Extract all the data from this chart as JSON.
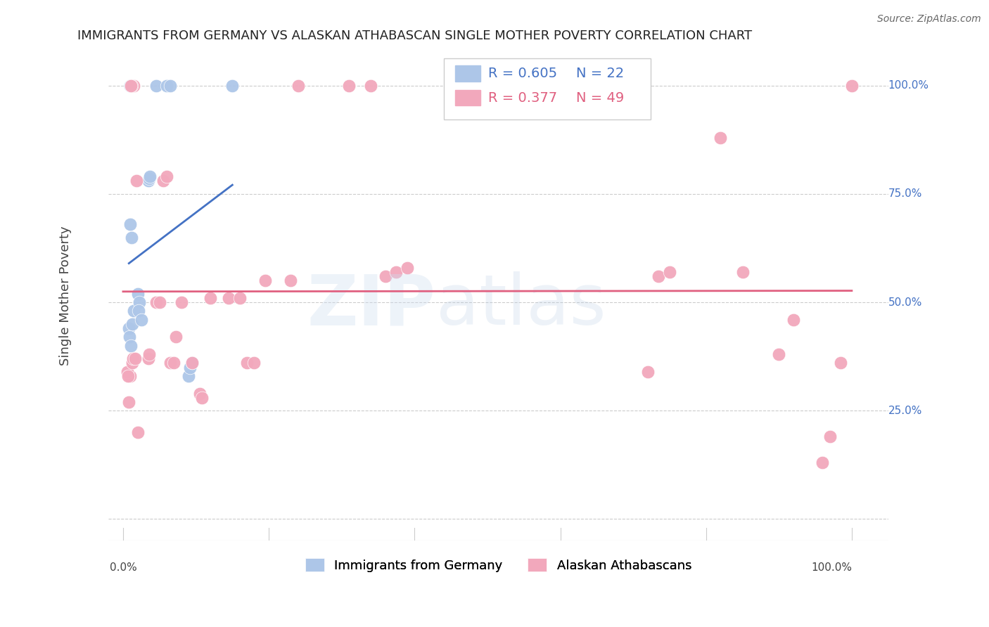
{
  "title": "IMMIGRANTS FROM GERMANY VS ALASKAN ATHABASCAN SINGLE MOTHER POVERTY CORRELATION CHART",
  "source": "Source: ZipAtlas.com",
  "ylabel": "Single Mother Poverty",
  "blue_r": 0.605,
  "blue_n": 22,
  "pink_r": 0.377,
  "pink_n": 49,
  "blue_color": "#adc6e8",
  "pink_color": "#f2a8bc",
  "blue_line_color": "#4472c4",
  "pink_line_color": "#e06080",
  "blue_points_x": [
    1.0,
    4.5,
    6.0,
    6.5,
    1.0,
    1.2,
    0.8,
    0.9,
    1.1,
    1.3,
    1.5,
    2.0,
    2.2,
    2.1,
    2.5,
    3.5,
    3.6,
    3.7,
    9.0,
    9.2,
    9.5,
    15.0
  ],
  "blue_points_y": [
    100.0,
    100.0,
    100.0,
    100.0,
    68.0,
    65.0,
    44.0,
    42.0,
    40.0,
    45.0,
    48.0,
    52.0,
    50.0,
    48.0,
    46.0,
    78.0,
    78.5,
    79.0,
    33.0,
    35.0,
    36.0,
    100.0
  ],
  "pink_points_x": [
    1.0,
    0.8,
    2.0,
    1.5,
    1.2,
    1.1,
    0.6,
    0.7,
    1.3,
    1.4,
    1.6,
    1.8,
    3.5,
    3.6,
    4.5,
    5.0,
    5.5,
    6.0,
    6.5,
    7.0,
    7.2,
    8.0,
    9.5,
    10.5,
    10.8,
    12.0,
    14.5,
    16.0,
    17.0,
    18.0,
    19.5,
    23.0,
    24.0,
    31.0,
    34.0,
    36.0,
    37.5,
    39.0,
    72.0,
    73.5,
    75.0,
    82.0,
    85.0,
    90.0,
    92.0,
    96.0,
    97.0,
    98.5,
    100.0
  ],
  "pink_points_y": [
    33.0,
    27.0,
    20.0,
    100.0,
    100.0,
    100.0,
    34.0,
    33.0,
    36.0,
    37.0,
    37.0,
    78.0,
    37.0,
    38.0,
    50.0,
    50.0,
    78.0,
    79.0,
    36.0,
    36.0,
    42.0,
    50.0,
    36.0,
    29.0,
    28.0,
    51.0,
    51.0,
    51.0,
    36.0,
    36.0,
    55.0,
    55.0,
    100.0,
    100.0,
    100.0,
    56.0,
    57.0,
    58.0,
    34.0,
    56.0,
    57.0,
    88.0,
    57.0,
    38.0,
    46.0,
    13.0,
    19.0,
    36.0,
    100.0
  ],
  "xlim": [
    0,
    100
  ],
  "ylim": [
    0,
    100
  ],
  "xticks": [
    0,
    20,
    40,
    60,
    80,
    100
  ],
  "xticklabels": [
    "0.0%",
    "",
    "",
    "",
    "",
    "100.0%"
  ],
  "ytick_vals": [
    0,
    25,
    50,
    75,
    100
  ],
  "ytick_labels": [
    "",
    "25.0%",
    "50.0%",
    "75.0%",
    "100.0%"
  ]
}
